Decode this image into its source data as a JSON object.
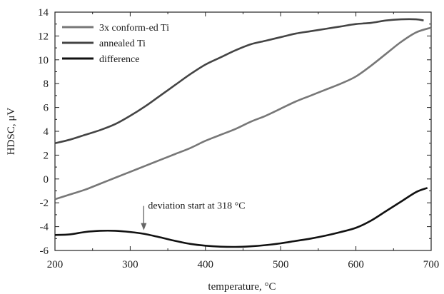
{
  "chart_data": {
    "type": "line",
    "title": "",
    "xlabel": "temperature, °C",
    "ylabel": "HDSC, μV",
    "xlim": [
      200,
      700
    ],
    "ylim": [
      -6,
      14
    ],
    "x_ticks": [
      200,
      300,
      400,
      500,
      600,
      700
    ],
    "y_ticks": [
      -6,
      -4,
      -2,
      0,
      2,
      4,
      6,
      8,
      10,
      12,
      14
    ],
    "x_tick_labels": [
      "200",
      "300",
      "400",
      "500",
      "600",
      "700"
    ],
    "y_tick_labels": [
      "-6",
      "-4",
      "-2",
      "0",
      "2",
      "4",
      "6",
      "8",
      "10",
      "12",
      "14"
    ],
    "grid": false,
    "legend_position": "top-left",
    "series": [
      {
        "name": "3x conform-ed Ti",
        "color": "#777777",
        "x": [
          200,
          220,
          240,
          260,
          280,
          300,
          320,
          340,
          360,
          380,
          400,
          420,
          440,
          460,
          480,
          500,
          520,
          540,
          560,
          580,
          600,
          620,
          640,
          660,
          680,
          700
        ],
        "y": [
          -1.7,
          -1.3,
          -0.9,
          -0.4,
          0.1,
          0.6,
          1.1,
          1.6,
          2.1,
          2.6,
          3.2,
          3.7,
          4.2,
          4.8,
          5.3,
          5.9,
          6.5,
          7.0,
          7.5,
          8.0,
          8.6,
          9.5,
          10.5,
          11.5,
          12.3,
          12.7
        ]
      },
      {
        "name": "annealed Ti",
        "color": "#444444",
        "x": [
          200,
          220,
          240,
          260,
          280,
          300,
          320,
          340,
          360,
          380,
          400,
          420,
          440,
          460,
          480,
          500,
          520,
          540,
          560,
          580,
          600,
          620,
          640,
          660,
          680,
          690
        ],
        "y": [
          3.0,
          3.3,
          3.7,
          4.1,
          4.6,
          5.3,
          6.1,
          7.0,
          7.9,
          8.8,
          9.6,
          10.2,
          10.8,
          11.3,
          11.6,
          11.9,
          12.2,
          12.4,
          12.6,
          12.8,
          13.0,
          13.1,
          13.3,
          13.4,
          13.4,
          13.3
        ]
      },
      {
        "name": "difference",
        "color": "#111111",
        "x": [
          200,
          220,
          240,
          260,
          280,
          300,
          318,
          340,
          360,
          380,
          400,
          420,
          440,
          460,
          480,
          500,
          520,
          540,
          560,
          580,
          600,
          620,
          640,
          660,
          680,
          695
        ],
        "y": [
          -4.7,
          -4.65,
          -4.45,
          -4.35,
          -4.35,
          -4.45,
          -4.6,
          -4.9,
          -5.2,
          -5.45,
          -5.6,
          -5.68,
          -5.7,
          -5.65,
          -5.55,
          -5.4,
          -5.2,
          -5.0,
          -4.75,
          -4.45,
          -4.1,
          -3.5,
          -2.7,
          -1.9,
          -1.1,
          -0.75
        ]
      }
    ],
    "annotations": [
      {
        "text": "deviation start at 318 °C",
        "x": 318,
        "y": -4.6
      }
    ]
  }
}
